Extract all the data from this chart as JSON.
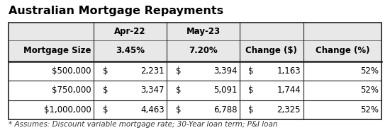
{
  "title": "Australian Mortgage Repayments",
  "footnote": "* Assumes: Discount variable mortgage rate; 30-Year loan term; P&I loan",
  "rows": [
    [
      "$500,000",
      "$",
      "2,231",
      "$",
      "3,394",
      "$",
      "1,163",
      "52%"
    ],
    [
      "$750,000",
      "$",
      "3,347",
      "$",
      "5,091",
      "$",
      "1,744",
      "52%"
    ],
    [
      "$1,000,000",
      "$",
      "4,463",
      "$",
      "6,788",
      "$",
      "2,325",
      "52%"
    ]
  ],
  "bg_color": "#ffffff",
  "header_bg": "#e8e8e8",
  "border_color": "#222222",
  "title_fontsize": 11.5,
  "table_fontsize": 8.5,
  "footnote_fontsize": 7.5,
  "fig_width": 5.5,
  "fig_height": 1.91,
  "dpi": 100
}
